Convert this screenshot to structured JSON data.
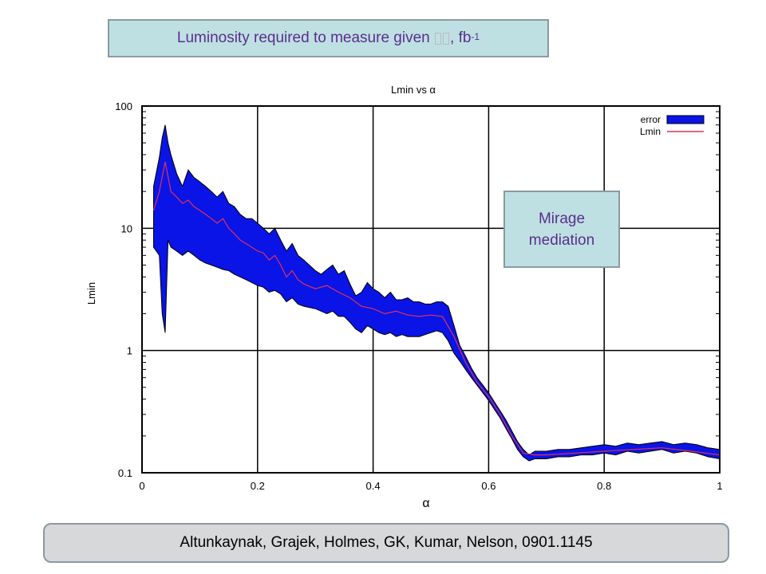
{
  "header": {
    "title_text": "Luminosity required to measure given",
    "title_unit": ", fb",
    "title_sup": "-1"
  },
  "annotation": {
    "line1": "Mirage",
    "line2": "mediation"
  },
  "footer": {
    "credit": "Altunkaynak, Grajek, Holmes, GK, Kumar, Nelson, 0901.1145"
  },
  "colors": {
    "band": "#0a14e6",
    "band_outline": "#000000",
    "line": "#e0305a",
    "grid": "#000000"
  },
  "chart_data": {
    "type": "area",
    "title": "Lmin vs α",
    "xlabel": "α",
    "ylabel": "Lmin",
    "xlim": [
      0,
      1
    ],
    "ylim": [
      0.1,
      100
    ],
    "yscale": "log",
    "grid": true,
    "legend_position": "top-right",
    "x_ticks": [
      "0",
      "0.2",
      "0.4",
      "0.6",
      "0.8",
      "1"
    ],
    "y_ticks": [
      "0.1",
      "1",
      "10",
      "100"
    ],
    "series": [
      {
        "name": "error",
        "kind": "band",
        "x": [
          0.02,
          0.03,
          0.035,
          0.04,
          0.045,
          0.05,
          0.06,
          0.07,
          0.08,
          0.09,
          0.1,
          0.11,
          0.12,
          0.13,
          0.14,
          0.15,
          0.16,
          0.17,
          0.18,
          0.19,
          0.2,
          0.21,
          0.22,
          0.23,
          0.24,
          0.25,
          0.26,
          0.27,
          0.28,
          0.3,
          0.31,
          0.32,
          0.33,
          0.34,
          0.35,
          0.36,
          0.37,
          0.38,
          0.39,
          0.4,
          0.41,
          0.42,
          0.43,
          0.44,
          0.45,
          0.46,
          0.47,
          0.48,
          0.49,
          0.5,
          0.51,
          0.52,
          0.53,
          0.54,
          0.55,
          0.56,
          0.57,
          0.58,
          0.59,
          0.6,
          0.61,
          0.62,
          0.63,
          0.64,
          0.65,
          0.66,
          0.67,
          0.68,
          0.7,
          0.72,
          0.74,
          0.76,
          0.78,
          0.8,
          0.82,
          0.84,
          0.86,
          0.88,
          0.9,
          0.92,
          0.94,
          0.96,
          0.98,
          1.0
        ],
        "upper": [
          22,
          38,
          55,
          70,
          50,
          40,
          28,
          22,
          30,
          26,
          24,
          22,
          20,
          18,
          20,
          16,
          15,
          13,
          12,
          12,
          11,
          10,
          9,
          10,
          8,
          6.5,
          7.5,
          6,
          5.5,
          4.5,
          4.2,
          4.6,
          5,
          4.2,
          4.5,
          3.5,
          2.8,
          3,
          3.6,
          3.2,
          3,
          2.7,
          3,
          2.6,
          2.6,
          2.7,
          2.5,
          2.5,
          2.4,
          2.4,
          2.5,
          2.5,
          2.3,
          1.6,
          1.1,
          0.9,
          0.72,
          0.6,
          0.52,
          0.45,
          0.38,
          0.32,
          0.27,
          0.22,
          0.18,
          0.155,
          0.14,
          0.15,
          0.15,
          0.155,
          0.155,
          0.16,
          0.165,
          0.17,
          0.165,
          0.175,
          0.17,
          0.175,
          0.18,
          0.17,
          0.175,
          0.17,
          0.16,
          0.155
        ],
        "lower": [
          7,
          6,
          2,
          1.4,
          8,
          7,
          6.5,
          6,
          6.5,
          6,
          5.5,
          5.2,
          5,
          4.8,
          4.6,
          4.5,
          4.2,
          4,
          3.8,
          3.6,
          3.4,
          3.3,
          3,
          3.1,
          2.9,
          2.5,
          2.7,
          2.4,
          2.3,
          2.2,
          2.1,
          2,
          2.1,
          1.9,
          1.9,
          1.7,
          1.5,
          1.4,
          1.6,
          1.5,
          1.4,
          1.35,
          1.4,
          1.3,
          1.35,
          1.3,
          1.3,
          1.3,
          1.35,
          1.4,
          1.45,
          1.4,
          1.2,
          0.95,
          0.82,
          0.7,
          0.6,
          0.52,
          0.45,
          0.39,
          0.33,
          0.28,
          0.23,
          0.19,
          0.155,
          0.135,
          0.125,
          0.13,
          0.13,
          0.135,
          0.135,
          0.14,
          0.14,
          0.145,
          0.14,
          0.15,
          0.145,
          0.15,
          0.155,
          0.145,
          0.15,
          0.145,
          0.135,
          0.13
        ]
      },
      {
        "name": "Lmin",
        "kind": "line",
        "x": [
          0.02,
          0.03,
          0.04,
          0.05,
          0.06,
          0.07,
          0.08,
          0.09,
          0.1,
          0.11,
          0.12,
          0.13,
          0.14,
          0.15,
          0.16,
          0.17,
          0.18,
          0.19,
          0.2,
          0.21,
          0.22,
          0.23,
          0.24,
          0.25,
          0.26,
          0.27,
          0.28,
          0.3,
          0.32,
          0.34,
          0.36,
          0.38,
          0.4,
          0.42,
          0.44,
          0.46,
          0.48,
          0.5,
          0.52,
          0.54,
          0.56,
          0.58,
          0.6,
          0.62,
          0.64,
          0.66,
          0.68,
          0.7,
          0.75,
          0.8,
          0.85,
          0.9,
          0.95,
          1.0
        ],
        "y": [
          14,
          20,
          35,
          20,
          18,
          16,
          17,
          15,
          14,
          13,
          12,
          11,
          12,
          10,
          9,
          8,
          7.5,
          7,
          6.5,
          6.3,
          5.5,
          6,
          5,
          4,
          4.5,
          3.8,
          3.5,
          3.2,
          3.4,
          3,
          2.7,
          2.3,
          2.2,
          2.0,
          2.1,
          1.95,
          1.9,
          1.95,
          1.9,
          1.3,
          0.8,
          0.55,
          0.42,
          0.3,
          0.2,
          0.145,
          0.14,
          0.14,
          0.145,
          0.15,
          0.155,
          0.16,
          0.15,
          0.14
        ]
      }
    ]
  }
}
